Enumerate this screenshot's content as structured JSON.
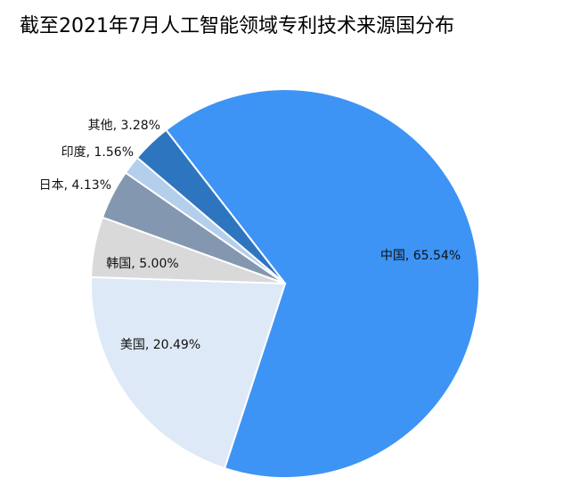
{
  "chart_data": {
    "type": "pie",
    "title": "截至2021年7月人工智能领域专利技术来源国分布",
    "categories": [
      "中国",
      "美国",
      "韩国",
      "日本",
      "印度",
      "其他"
    ],
    "values": [
      65.54,
      20.49,
      5.0,
      4.13,
      1.56,
      3.28
    ],
    "value_labels": [
      "65.54%",
      "20.49%",
      "5.00%",
      "4.13%",
      "1.56%",
      "3.28%"
    ],
    "colors": [
      "#3d94f5",
      "#dde9f6",
      "#d9d9d9",
      "#8497b0",
      "#b4cfec",
      "#2e75c0"
    ]
  }
}
